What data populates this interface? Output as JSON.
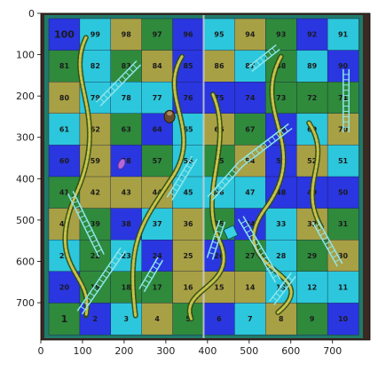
{
  "axes": {
    "x_ticks": [
      "0",
      "100",
      "200",
      "300",
      "400",
      "500",
      "600",
      "700"
    ],
    "y_ticks": [
      "0",
      "100",
      "200",
      "300",
      "400",
      "500",
      "600",
      "700"
    ]
  },
  "board": {
    "rows": [
      [
        "100",
        "99",
        "98",
        "97",
        "96",
        "95",
        "94",
        "93",
        "92",
        "91"
      ],
      [
        "81",
        "82",
        "83",
        "84",
        "85",
        "86",
        "87",
        "88",
        "89",
        "90"
      ],
      [
        "80",
        "79",
        "78",
        "77",
        "76",
        "75",
        "74",
        "73",
        "72",
        "71"
      ],
      [
        "61",
        "62",
        "63",
        "64",
        "65",
        "66",
        "67",
        "68",
        "69",
        "70"
      ],
      [
        "60",
        "59",
        "58",
        "57",
        "56",
        "55",
        "54",
        "53",
        "52",
        "51"
      ],
      [
        "41",
        "42",
        "43",
        "44",
        "45",
        "46",
        "47",
        "48",
        "49",
        "50"
      ],
      [
        "40",
        "39",
        "38",
        "37",
        "36",
        "35",
        "34",
        "33",
        "32",
        "31"
      ],
      [
        "21",
        "22",
        "23",
        "24",
        "25",
        "26",
        "27",
        "28",
        "29",
        "30"
      ],
      [
        "20",
        "19",
        "18",
        "17",
        "16",
        "15",
        "14",
        "13",
        "12",
        "11"
      ],
      [
        "1",
        "2",
        "3",
        "4",
        "5",
        "6",
        "7",
        "8",
        "9",
        "10"
      ]
    ],
    "colors": {
      "blue": "#2a36e0",
      "cyan": "#2cc7dc",
      "olive": "#a8a044",
      "green": "#2f8a3c",
      "border": "#1f7a6a",
      "frame": "#3a2a22"
    }
  }
}
